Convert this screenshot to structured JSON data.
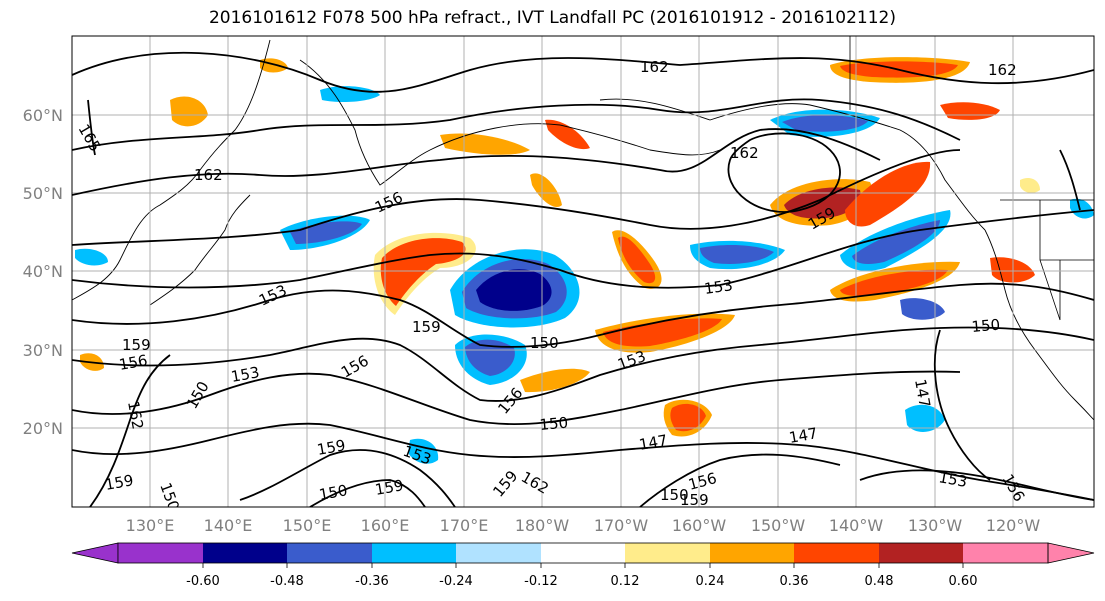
{
  "title": "2016101612 F078 500 hPa refract., IVT Landfall PC (2016101912 - 2016102112)",
  "lat_labels": [
    "60°N",
    "50°N",
    "40°N",
    "30°N",
    "20°N"
  ],
  "lon_labels": [
    "130°E",
    "140°E",
    "150°E",
    "160°E",
    "170°E",
    "180°W",
    "170°W",
    "160°W",
    "150°W",
    "140°W",
    "130°W",
    "120°W"
  ],
  "colorbar": {
    "colors": [
      "#9932cc",
      "#00008b",
      "#3a5ccc",
      "#00bfff",
      "#b0e2ff",
      "#ffffff",
      "#ffec8b",
      "#ffa500",
      "#ff4500",
      "#b22222",
      "#ff82ab"
    ],
    "ticks": [
      "-0.60",
      "-0.48",
      "-0.36",
      "-0.24",
      "-0.12",
      "0.12",
      "0.24",
      "0.36",
      "0.48",
      "0.60"
    ]
  },
  "contour_labels": [
    "165",
    "162",
    "162",
    "162",
    "162",
    "156",
    "153",
    "159",
    "153",
    "156",
    "150",
    "150",
    "159",
    "153",
    "150",
    "159",
    "156",
    "147",
    "147",
    "156",
    "153",
    "150",
    "159",
    "162",
    "150",
    "159",
    "153",
    "150",
    "159",
    "156",
    "153",
    "147",
    "150",
    "159",
    "159",
    "162",
    "156"
  ]
}
